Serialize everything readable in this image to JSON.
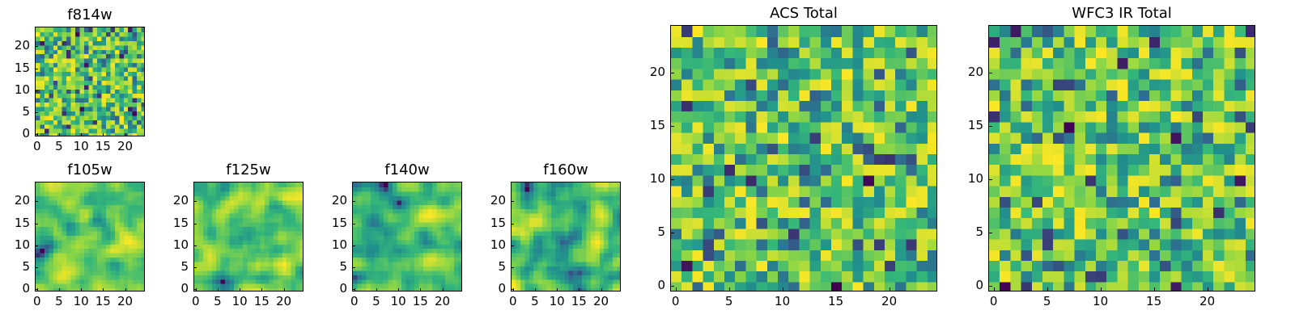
{
  "figure": {
    "colormap": [
      "#440154",
      "#31688e",
      "#21908d",
      "#35b779",
      "#90d743",
      "#fde725"
    ]
  },
  "chart_data": [
    {
      "id": "f814w",
      "type": "heatmap",
      "title": "f814w",
      "grid_size": 25,
      "seed": 814,
      "smooth": 0,
      "xticks": [
        "0",
        "5",
        "10",
        "15",
        "20"
      ],
      "yticks": [
        "0",
        "5",
        "10",
        "15",
        "20"
      ],
      "xlim": [
        0,
        24
      ],
      "ylim": [
        0,
        24
      ]
    },
    {
      "id": "f105w",
      "type": "heatmap",
      "title": "f105w",
      "grid_size": 25,
      "seed": 105,
      "smooth": 2,
      "xticks": [
        "0",
        "5",
        "10",
        "15",
        "20"
      ],
      "yticks": [
        "0",
        "5",
        "10",
        "15",
        "20"
      ],
      "xlim": [
        0,
        24
      ],
      "ylim": [
        0,
        24
      ]
    },
    {
      "id": "f125w",
      "type": "heatmap",
      "title": "f125w",
      "grid_size": 25,
      "seed": 125,
      "smooth": 2,
      "xticks": [
        "0",
        "5",
        "10",
        "15",
        "20"
      ],
      "yticks": [
        "0",
        "5",
        "10",
        "15",
        "20"
      ],
      "xlim": [
        0,
        24
      ],
      "ylim": [
        0,
        24
      ]
    },
    {
      "id": "f140w",
      "type": "heatmap",
      "title": "f140w",
      "grid_size": 25,
      "seed": 140,
      "smooth": 2,
      "xticks": [
        "0",
        "5",
        "10",
        "15",
        "20"
      ],
      "yticks": [
        "0",
        "5",
        "10",
        "15",
        "20"
      ],
      "xlim": [
        0,
        24
      ],
      "ylim": [
        0,
        24
      ]
    },
    {
      "id": "f160w",
      "type": "heatmap",
      "title": "f160w",
      "grid_size": 25,
      "seed": 160,
      "smooth": 2,
      "xticks": [
        "0",
        "5",
        "10",
        "15",
        "20"
      ],
      "yticks": [
        "0",
        "5",
        "10",
        "15",
        "20"
      ],
      "xlim": [
        0,
        24
      ],
      "ylim": [
        0,
        24
      ]
    },
    {
      "id": "acs-total",
      "type": "heatmap",
      "title": "ACS Total",
      "grid_size": 25,
      "seed": 900,
      "smooth": 0,
      "xticks": [
        "0",
        "5",
        "10",
        "15",
        "20"
      ],
      "yticks": [
        "0",
        "5",
        "10",
        "15",
        "20"
      ],
      "xlim": [
        0,
        24
      ],
      "ylim": [
        0,
        24
      ]
    },
    {
      "id": "wfc3-ir-total",
      "type": "heatmap",
      "title": "WFC3 IR Total",
      "grid_size": 25,
      "seed": 901,
      "smooth": 0,
      "xticks": [
        "0",
        "5",
        "10",
        "15",
        "20"
      ],
      "yticks": [
        "0",
        "5",
        "10",
        "15",
        "20"
      ],
      "xlim": [
        0,
        24
      ],
      "ylim": [
        0,
        24
      ]
    }
  ]
}
